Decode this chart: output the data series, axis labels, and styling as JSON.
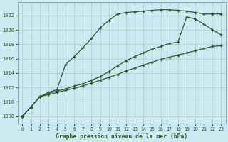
{
  "title": "Graphe pression niveau de la mer (hPa)",
  "background_color": "#cce8f0",
  "grid_color": "#aacccc",
  "line_color": "#2d5a2d",
  "xlim": [
    -0.5,
    23.5
  ],
  "ylim": [
    1007.0,
    1023.8
  ],
  "yticks": [
    1008,
    1010,
    1012,
    1014,
    1016,
    1018,
    1020,
    1022
  ],
  "xticks": [
    0,
    1,
    2,
    3,
    4,
    5,
    6,
    7,
    8,
    9,
    10,
    11,
    12,
    13,
    14,
    15,
    16,
    17,
    18,
    19,
    20,
    21,
    22,
    23
  ],
  "series1_y": [
    1008.0,
    1009.3,
    1010.7,
    1011.3,
    1011.7,
    1015.2,
    1016.3,
    1017.5,
    1018.8,
    1020.3,
    1021.3,
    1022.2,
    1022.4,
    1022.5,
    1022.6,
    1022.7,
    1022.8,
    1022.8,
    1022.7,
    1022.6,
    1022.4,
    1022.2,
    1022.2,
    1022.2
  ],
  "series2_y": [
    1008.0,
    1009.3,
    1010.7,
    1011.2,
    1011.5,
    1011.8,
    1012.2,
    1012.5,
    1013.0,
    1013.5,
    1014.2,
    1015.0,
    1015.7,
    1016.3,
    1016.8,
    1017.3,
    1017.7,
    1018.1,
    1018.3,
    1021.8,
    1021.5,
    1020.8,
    1020.0,
    1019.3
  ],
  "series3_y": [
    1008.0,
    1009.3,
    1010.7,
    1011.0,
    1011.3,
    1011.6,
    1011.9,
    1012.2,
    1012.6,
    1013.0,
    1013.4,
    1013.8,
    1014.3,
    1014.7,
    1015.1,
    1015.5,
    1015.9,
    1016.2,
    1016.5,
    1016.8,
    1017.1,
    1017.4,
    1017.7,
    1017.8
  ]
}
